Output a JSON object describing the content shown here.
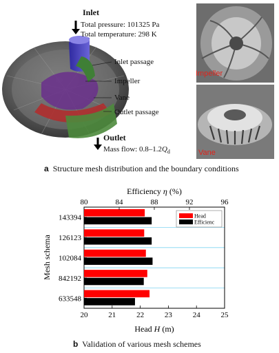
{
  "panel_a": {
    "inlet_title": "Inlet",
    "total_pressure": "Total pressure: 101325 Pa",
    "total_temperature": "Total temperature: 298 K",
    "inlet_passage": "Inlet passage",
    "impeller": "Impeller",
    "vane": "Vane",
    "outlet_passage": "Outlet passage",
    "outlet_title": "Outlet",
    "mass_flow": "Mass flow: 0.8–1.2",
    "mass_flow_symbol": "Q",
    "mass_flow_sub": "d",
    "photo_impeller": "Impeller",
    "photo_vane": "Vane",
    "caption_letter": "a",
    "caption_text": "Structure mesh distribution and the boundary conditions"
  },
  "panel_b": {
    "caption_letter": "b",
    "caption_text": "Validation of various mesh schemes"
  },
  "chart_data": {
    "type": "bar",
    "orientation": "horizontal",
    "categories": [
      "143394",
      "126123",
      "102084",
      "842192",
      "633548"
    ],
    "series": [
      {
        "name": "Head",
        "axis": "bottom",
        "color": "#ff0000",
        "values": [
          22.16,
          22.14,
          22.2,
          22.25,
          22.33
        ]
      },
      {
        "name": "Efficienc",
        "axis": "top",
        "color": "#000000",
        "values": [
          87.7,
          87.7,
          87.8,
          86.8,
          85.8
        ]
      }
    ],
    "top_axis": {
      "label": "Efficiency",
      "symbol": "η",
      "unit": " (%)",
      "ticks": [
        "80",
        "84",
        "88",
        "92",
        "96"
      ],
      "range": [
        80,
        96
      ]
    },
    "bottom_axis": {
      "label": "Head",
      "symbol": "H",
      "unit": " (m)",
      "ticks": [
        "20",
        "21",
        "22",
        "23",
        "24",
        "25"
      ],
      "range": [
        20,
        25
      ]
    },
    "ylabel": "Mesh schema",
    "legend_position": "top-right",
    "grid": true
  }
}
